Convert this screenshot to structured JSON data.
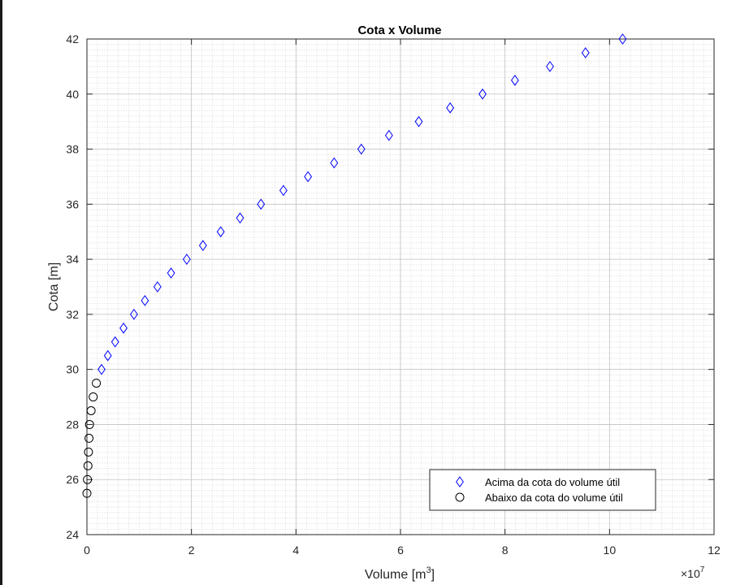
{
  "chart_data": {
    "type": "scatter",
    "title": "Cota x Volume",
    "xlabel": "Volume [m",
    "xlabel_sup": "3",
    "xlabel_end": "]",
    "ylabel": "Cota [m]",
    "x_exponent_base": "×10",
    "x_exponent": "7",
    "xlim": [
      0,
      12
    ],
    "ylim": [
      24,
      42
    ],
    "xticks": [
      0,
      2,
      4,
      6,
      8,
      10,
      12
    ],
    "yticks": [
      24,
      26,
      28,
      30,
      32,
      34,
      36,
      38,
      40,
      42
    ],
    "grid": "major and minor",
    "legend_position": "lower-right",
    "series": [
      {
        "name": "Acima da cota do volume útil",
        "marker": "diamond",
        "color": "#0000ff",
        "x": [
          0.28,
          0.4,
          0.54,
          0.7,
          0.9,
          1.11,
          1.35,
          1.61,
          1.91,
          2.22,
          2.56,
          2.93,
          3.33,
          3.76,
          4.23,
          4.73,
          5.25,
          5.78,
          6.35,
          6.95,
          7.57,
          8.19,
          8.86,
          9.54,
          10.25
        ],
        "y": [
          30,
          30.5,
          31,
          31.5,
          32,
          32.5,
          33,
          33.5,
          34,
          34.5,
          35,
          35.5,
          36,
          36.5,
          37,
          37.5,
          38,
          38.5,
          39,
          39.5,
          40,
          40.5,
          41,
          41.5,
          42
        ]
      },
      {
        "name": "Abaixo da cota do volume útil",
        "marker": "circle",
        "color": "#000000",
        "x": [
          0.0,
          0.01,
          0.02,
          0.03,
          0.04,
          0.05,
          0.08,
          0.12,
          0.18
        ],
        "y": [
          25.5,
          26,
          26.5,
          27,
          27.5,
          28,
          28.5,
          29,
          29.5
        ]
      }
    ]
  }
}
